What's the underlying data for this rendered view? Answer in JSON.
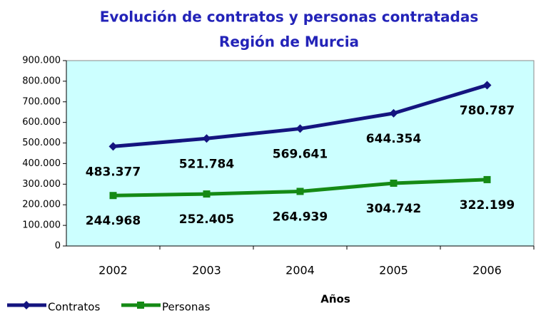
{
  "chart_data": {
    "type": "line",
    "title": [
      "Evolución de contratos y personas contratadas",
      "Región de Murcia"
    ],
    "x_label": "Años",
    "categories": [
      "2002",
      "2003",
      "2004",
      "2005",
      "2006"
    ],
    "series": [
      {
        "name": "Contratos",
        "color": "#14147f",
        "marker": "diamond",
        "values": [
          483377,
          521784,
          569641,
          644354,
          780787
        ],
        "value_labels": [
          "483.377",
          "521.784",
          "569.641",
          "644.354",
          "780.787"
        ]
      },
      {
        "name": "Personas",
        "color": "#158a15",
        "marker": "square",
        "values": [
          244968,
          252405,
          264939,
          304742,
          322199
        ],
        "value_labels": [
          "244.968",
          "252.405",
          "264.939",
          "304.742",
          "322.199"
        ]
      }
    ],
    "ylim": [
      0,
      900000
    ],
    "yticks": [
      0,
      {
        "value": 100000,
        "label": "100.000"
      },
      {
        "value": 200000,
        "label": "200.000"
      },
      {
        "value": 300000,
        "label": "300.000"
      },
      {
        "value": 400000,
        "label": "400.000"
      },
      {
        "value": 500000,
        "label": "500.000"
      },
      {
        "value": 600000,
        "label": "600.000"
      },
      {
        "value": 700000,
        "label": "700.000"
      },
      {
        "value": 800000,
        "label": "800.000"
      },
      {
        "value": 900000,
        "label": "900.000"
      }
    ],
    "legend": "bottom-left",
    "plot_background": "#ccffff"
  }
}
